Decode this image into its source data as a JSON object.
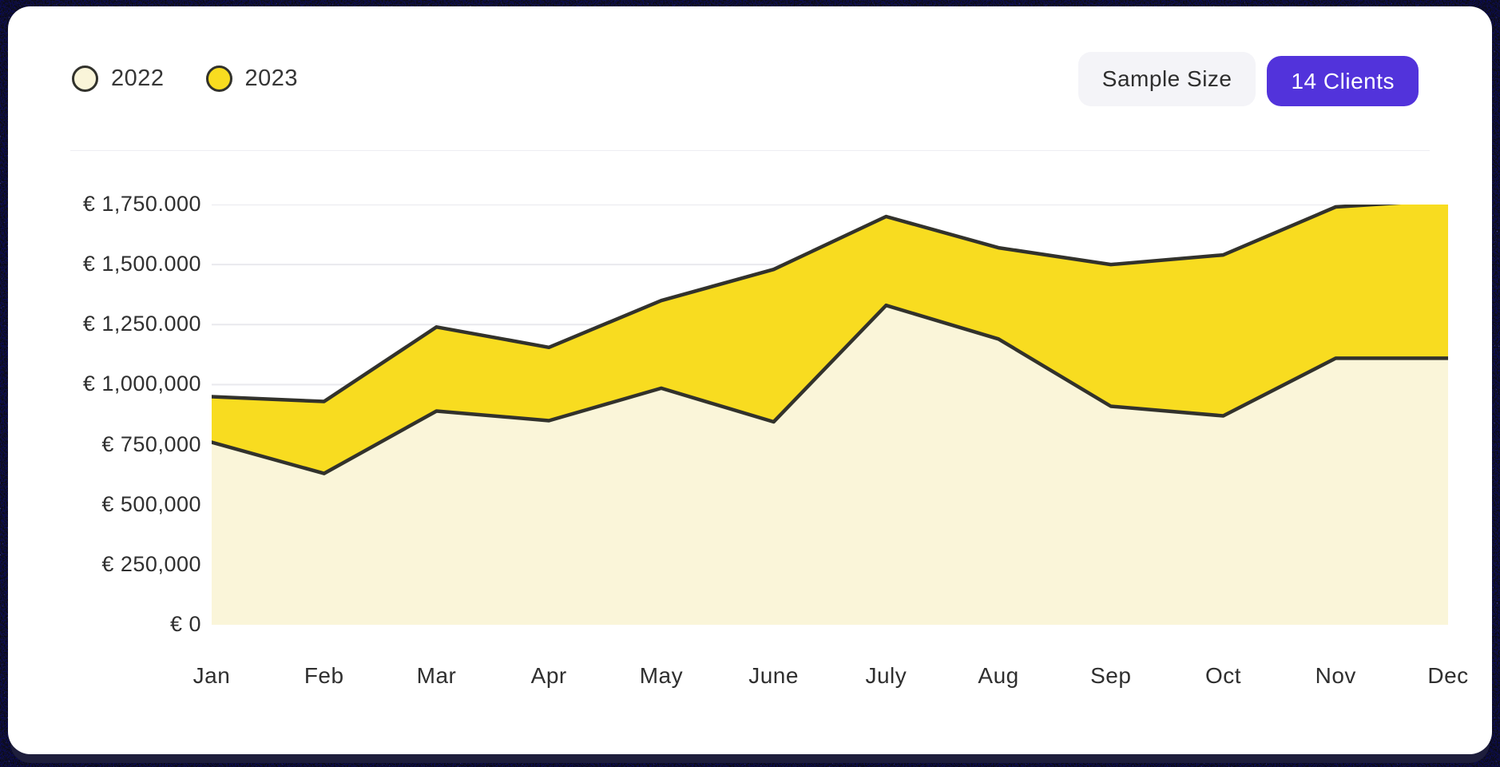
{
  "legend": {
    "items": [
      {
        "label": "2022"
      },
      {
        "label": "2023"
      }
    ]
  },
  "controls": {
    "sample_size_label": "Sample Size",
    "clients_button_label": "14 Clients"
  },
  "colors": {
    "accent_purple": "#5233DB",
    "series_2022": "#FAF5D9",
    "series_2023": "#F8DC20",
    "line": "#32322C",
    "grid": "#E9E9EE",
    "card": "#FFFFFF",
    "text": "#2F2F2F"
  },
  "chart_data": {
    "type": "area",
    "title": "",
    "xlabel": "",
    "ylabel": "",
    "grid": true,
    "legend_position": "top-left",
    "currency": "EUR",
    "y_max": 1750000,
    "ylim": [
      0,
      1750000
    ],
    "categories": [
      "Jan",
      "Feb",
      "Mar",
      "Apr",
      "May",
      "June",
      "July",
      "Aug",
      "Sep",
      "Oct",
      "Nov",
      "Dec"
    ],
    "series": [
      {
        "name": "2022",
        "color": "#FAF5D9",
        "values": [
          760000,
          630000,
          890000,
          850000,
          985000,
          845000,
          1330000,
          1190000,
          910000,
          870000,
          1110000,
          1110000
        ]
      },
      {
        "name": "2023",
        "color": "#F8DC20",
        "values": [
          950000,
          930000,
          1240000,
          1155000,
          1350000,
          1480000,
          1700000,
          1570000,
          1500000,
          1540000,
          1740000,
          1770000
        ]
      }
    ],
    "y_ticks": [
      {
        "label": "€ 1,750.000",
        "value": 1750000
      },
      {
        "label": "€ 1,500.000",
        "value": 1500000
      },
      {
        "label": "€ 1,250.000",
        "value": 1250000
      },
      {
        "label": "€ 1,000,000",
        "value": 1000000
      },
      {
        "label": "€ 750,000",
        "value": 750000
      },
      {
        "label": "€ 500,000",
        "value": 500000
      },
      {
        "label": "€ 250,000",
        "value": 250000
      },
      {
        "label": "€ 0",
        "value": 0
      }
    ]
  }
}
